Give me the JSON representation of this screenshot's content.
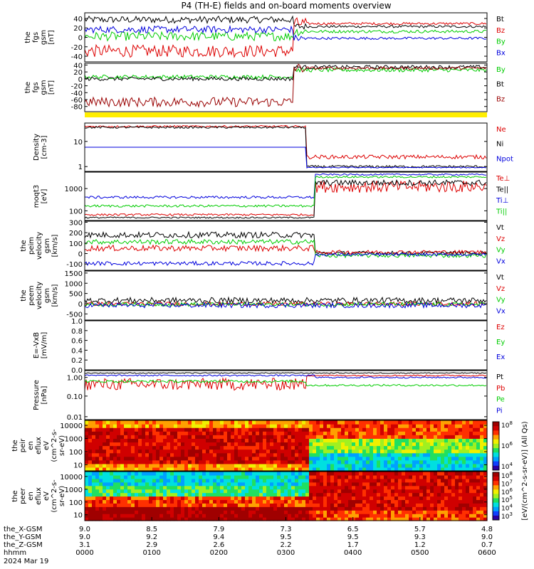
{
  "chart_data": {
    "type": "line",
    "title": "P4 (TH-E) fields and on-board moments overview",
    "panels": [
      {
        "id": "fgs_gsm",
        "ylabel": [
          "the",
          "fgs",
          "gsm",
          "[nT]"
        ],
        "yticks": [
          -40,
          -20,
          0,
          20,
          40
        ],
        "ylim": [
          -52,
          52
        ],
        "series": [
          {
            "name": "Bt",
            "color": "#000000"
          },
          {
            "name": "Bz",
            "color": "#dd0000"
          },
          {
            "name": "By",
            "color": "#00cc00"
          },
          {
            "name": "Bx",
            "color": "#0000dd"
          }
        ]
      },
      {
        "id": "fgs_gsm_angles",
        "ylabel": [
          "the",
          "fgs",
          "gsm",
          "[nT]"
        ],
        "yticks": [
          -80,
          -60,
          -40,
          -20,
          0,
          20,
          40
        ],
        "ylim": [
          -95,
          45
        ],
        "series": [
          {
            "name": "By",
            "color": "#00cc00"
          },
          {
            "name": "Bt",
            "color": "#000000"
          },
          {
            "name": "Bz",
            "color": "#990000"
          }
        ]
      },
      {
        "id": "density",
        "ylabel": [
          "Density",
          "[cm-3]"
        ],
        "yticks": [
          "1",
          "10"
        ],
        "log": true,
        "series": [
          {
            "name": "Ne",
            "color": "#dd0000"
          },
          {
            "name": "Ni",
            "color": "#000000"
          },
          {
            "name": "Npot",
            "color": "#0000dd"
          }
        ]
      },
      {
        "id": "temperature",
        "ylabel": [
          "moqt3",
          "[eV]"
        ],
        "yticks": [
          "100",
          "1000"
        ],
        "log": true,
        "series": [
          {
            "name": "Te⊥",
            "color": "#dd0000"
          },
          {
            "name": "Te||",
            "color": "#000000"
          },
          {
            "name": "Ti⊥",
            "color": "#0000dd"
          },
          {
            "name": "Ti||",
            "color": "#00cc00"
          }
        ]
      },
      {
        "id": "peim_velocity",
        "ylabel": [
          "the",
          "peim",
          "velocity",
          "gsm",
          "[km/s]"
        ],
        "yticks": [
          -100,
          0,
          100,
          200,
          300
        ],
        "ylim": [
          -160,
          310
        ],
        "series": [
          {
            "name": "Vt",
            "color": "#000000"
          },
          {
            "name": "Vz",
            "color": "#dd0000"
          },
          {
            "name": "Vy",
            "color": "#00cc00"
          },
          {
            "name": "Vx",
            "color": "#0000dd"
          }
        ]
      },
      {
        "id": "peem_velocity",
        "ylabel": [
          "the",
          "peem",
          "velocity",
          "gsm",
          "[km/s]"
        ],
        "yticks": [
          -500,
          0,
          500,
          1000,
          1500
        ],
        "ylim": [
          -800,
          1600
        ],
        "series": [
          {
            "name": "Vt",
            "color": "#000000"
          },
          {
            "name": "Vz",
            "color": "#dd0000"
          },
          {
            "name": "Vy",
            "color": "#00cc00"
          },
          {
            "name": "Vx",
            "color": "#0000dd"
          }
        ]
      },
      {
        "id": "efield",
        "ylabel": [
          "E=-VxB",
          "[mV/m]"
        ],
        "yticks": [
          "0.0",
          "0.2",
          "0.4",
          "0.6",
          "0.8",
          "1.0"
        ],
        "ylim": [
          0,
          1
        ],
        "series": [
          {
            "name": "Ez",
            "color": "#dd0000"
          },
          {
            "name": "Ey",
            "color": "#00cc00"
          },
          {
            "name": "Ex",
            "color": "#0000dd"
          }
        ]
      },
      {
        "id": "pressure",
        "ylabel": [
          "Pressure",
          "[nPa]"
        ],
        "yticks": [
          "0.01",
          "0.10",
          "1.00"
        ],
        "log": true,
        "series": [
          {
            "name": "Pt",
            "color": "#000000"
          },
          {
            "name": "Pb",
            "color": "#dd0000"
          },
          {
            "name": "Pe",
            "color": "#00cc00"
          },
          {
            "name": "Pi",
            "color": "#0000dd"
          }
        ]
      },
      {
        "id": "peir_spec",
        "ylabel": [
          "the",
          "peir",
          "en",
          "eflux",
          "eV",
          "(cm^2-s-",
          "sr-eV)"
        ],
        "yticks": [
          "10",
          "100",
          "1000",
          "10000"
        ]
      },
      {
        "id": "peer_spec",
        "ylabel": [
          "the",
          "peer",
          "en",
          "eflux",
          "eV",
          "(cm^2-s-",
          "sr-eV)"
        ],
        "yticks": [
          "10",
          "100",
          "1000",
          "10000"
        ]
      }
    ],
    "colorbar": {
      "label": "[eV/(cm^2-s-sr-eV)] (All Qs)",
      "upper_ticks": [
        "10^4",
        "10^6",
        "10^8"
      ],
      "lower_ticks": [
        "10^3",
        "10^4",
        "10^5",
        "10^6",
        "10^7",
        "10^8"
      ]
    },
    "x_axis": {
      "row_labels": [
        "the_X-GSM",
        "the_Y-GSM",
        "the_Z-GSM",
        "hhmm",
        "2024 Mar 19"
      ],
      "x_gsm": [
        "9.0",
        "8.5",
        "7.9",
        "7.3",
        "6.5",
        "5.7",
        "4.8"
      ],
      "y_gsm": [
        "9.0",
        "9.2",
        "9.4",
        "9.5",
        "9.5",
        "9.3",
        "9.0"
      ],
      "z_gsm": [
        "3.1",
        "2.9",
        "2.6",
        "2.2",
        "1.7",
        "1.2",
        "0.7"
      ],
      "hhmm": [
        "0000",
        "0100",
        "0200",
        "0300",
        "0400",
        "0500",
        "0600"
      ]
    }
  }
}
